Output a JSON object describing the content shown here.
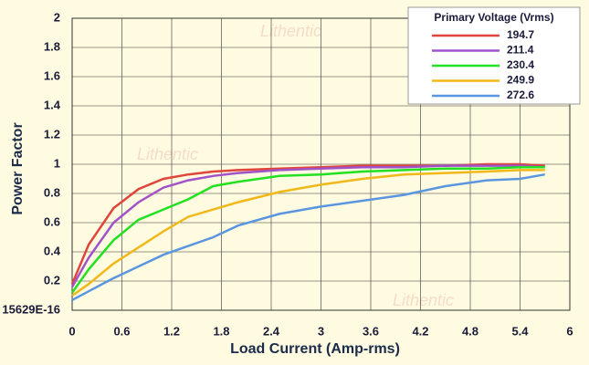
{
  "chart_data": {
    "type": "line",
    "x_label": "Load Current (Amp-rms)",
    "y_label": "Power Factor",
    "legend_title": "Primary Voltage (Vrms)",
    "watermark": "Lithentic",
    "x": [
      0,
      0.2,
      0.5,
      0.8,
      1.1,
      1.4,
      1.7,
      2.0,
      2.5,
      3.0,
      3.5,
      4.0,
      4.5,
      5.0,
      5.4,
      5.7
    ],
    "series": [
      {
        "name": "194.7",
        "color": "#e0453c",
        "values": [
          0.18,
          0.45,
          0.7,
          0.83,
          0.9,
          0.93,
          0.95,
          0.96,
          0.97,
          0.98,
          0.99,
          0.99,
          0.99,
          1.0,
          1.0,
          0.99
        ]
      },
      {
        "name": "211.4",
        "color": "#a052c8",
        "values": [
          0.16,
          0.36,
          0.6,
          0.74,
          0.84,
          0.89,
          0.92,
          0.94,
          0.96,
          0.97,
          0.98,
          0.98,
          0.99,
          0.99,
          0.99,
          0.98
        ]
      },
      {
        "name": "230.4",
        "color": "#22e022",
        "values": [
          0.12,
          0.28,
          0.48,
          0.62,
          0.69,
          0.76,
          0.85,
          0.88,
          0.92,
          0.93,
          0.95,
          0.96,
          0.97,
          0.97,
          0.98,
          0.98
        ]
      },
      {
        "name": "249.9",
        "color": "#f0b818",
        "values": [
          0.1,
          0.18,
          0.32,
          0.43,
          0.54,
          0.64,
          0.69,
          0.74,
          0.81,
          0.86,
          0.9,
          0.93,
          0.94,
          0.95,
          0.96,
          0.96
        ]
      },
      {
        "name": "272.6",
        "color": "#5a96e0",
        "values": [
          0.07,
          0.13,
          0.22,
          0.3,
          0.38,
          0.44,
          0.5,
          0.58,
          0.66,
          0.71,
          0.75,
          0.79,
          0.85,
          0.89,
          0.9,
          0.93
        ]
      }
    ],
    "xlim": [
      0,
      6
    ],
    "xticks": [
      0,
      0.6,
      1.2,
      1.8,
      2.4,
      3,
      3.6,
      4.2,
      4.8,
      5.4,
      6
    ],
    "ylim": [
      0,
      2
    ],
    "yticks": [
      {
        "value": 0,
        "label": "15629E-16"
      },
      0.2,
      0.4,
      0.6,
      0.8,
      1,
      1.2,
      1.4,
      1.6,
      1.8,
      2
    ],
    "grid": true
  }
}
